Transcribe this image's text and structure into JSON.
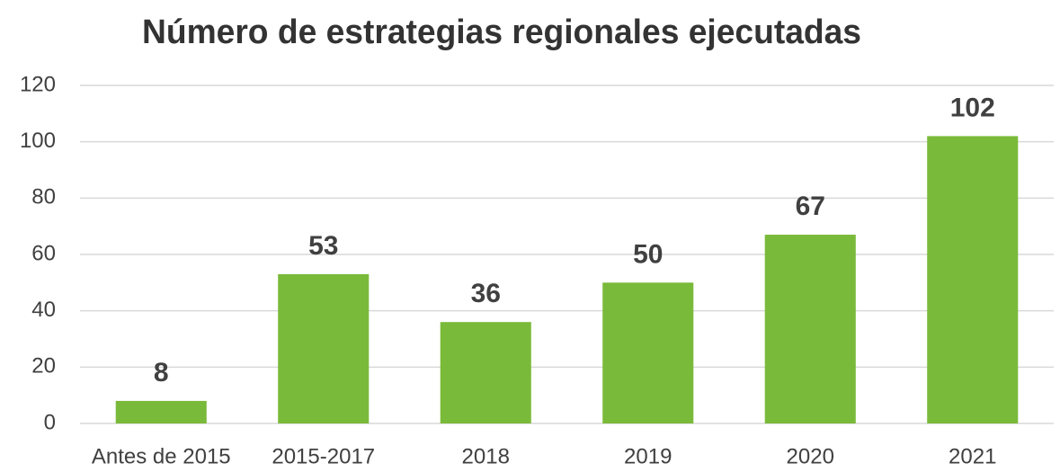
{
  "chart_data": {
    "type": "bar",
    "title": "Número de estrategias regionales ejecutadas",
    "categories": [
      "Antes de 2015",
      "2015-2017",
      "2018",
      "2019",
      "2020",
      "2021"
    ],
    "values": [
      8,
      53,
      36,
      50,
      67,
      102
    ],
    "color": "#7aba3a",
    "ylim": [
      0,
      120
    ],
    "yticks": [
      0,
      20,
      40,
      60,
      80,
      100,
      120
    ],
    "grid": true
  }
}
